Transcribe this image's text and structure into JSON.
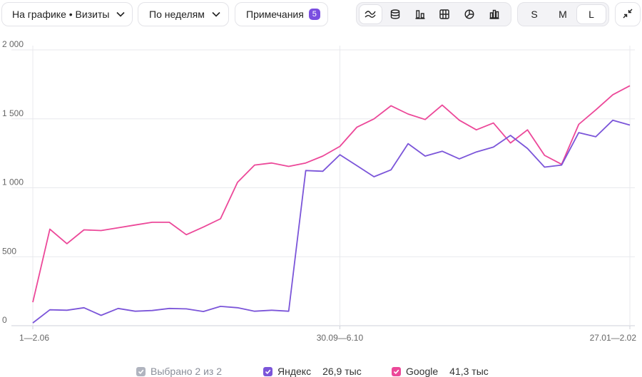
{
  "toolbar": {
    "metric_label": "На графике • Визиты",
    "period_label": "По неделям",
    "notes_label": "Примечания",
    "notes_count": "5",
    "chart_type_icons": [
      "smoothed-lines-icon",
      "stacked-area-icon",
      "columns-icon",
      "stacked-columns-icon",
      "pie-icon",
      "bars-icon"
    ],
    "size_options": [
      "S",
      "M",
      "L"
    ],
    "active_size": "L"
  },
  "legend": {
    "selected_label": "Выбрано 2 из 2",
    "items": [
      {
        "name": "Яндекс",
        "total": "26,9 тыс",
        "color": "#7b55d9"
      },
      {
        "name": "Google",
        "total": "41,3 тыс",
        "color": "#ec4899"
      }
    ]
  },
  "chart_data": {
    "type": "line",
    "ylim": [
      0,
      2000
    ],
    "y_ticks": [
      "0",
      "500",
      "1 000",
      "1 500",
      "2 000"
    ],
    "x_tick_labels": [
      "1—2.06",
      "30.09—6.10",
      "27.01—2.02"
    ],
    "x_tick_indices": [
      0,
      18,
      35
    ],
    "grid": true,
    "series": [
      {
        "name": "Яндекс",
        "color": "#7b55d9",
        "values": [
          20,
          115,
          112,
          130,
          75,
          125,
          105,
          110,
          125,
          122,
          103,
          140,
          130,
          105,
          112,
          105,
          1125,
          1120,
          1240,
          1160,
          1080,
          1130,
          1320,
          1230,
          1265,
          1210,
          1260,
          1295,
          1380,
          1285,
          1150,
          1165,
          1400,
          1370,
          1490,
          1455
        ]
      },
      {
        "name": "Google",
        "color": "#ec4899",
        "values": [
          170,
          700,
          595,
          695,
          690,
          710,
          730,
          750,
          750,
          660,
          715,
          775,
          1040,
          1165,
          1180,
          1155,
          1180,
          1230,
          1300,
          1440,
          1500,
          1595,
          1535,
          1495,
          1600,
          1490,
          1420,
          1470,
          1325,
          1420,
          1235,
          1170,
          1460,
          1565,
          1675,
          1740
        ]
      }
    ]
  }
}
